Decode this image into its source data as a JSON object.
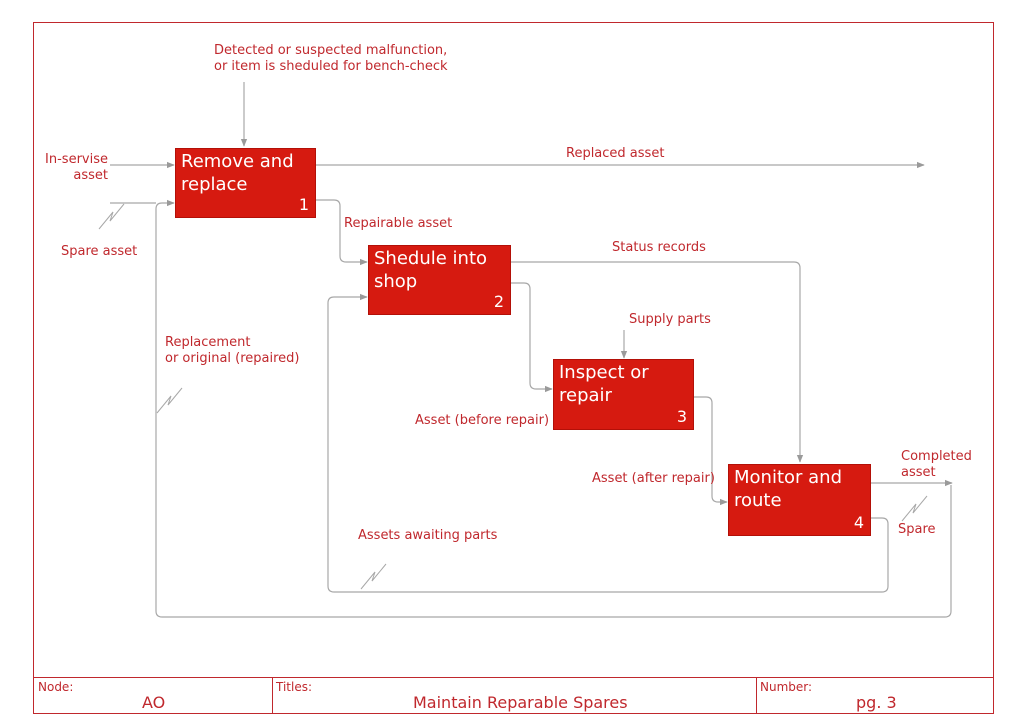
{
  "diagram": {
    "activities": [
      {
        "title_lines": [
          "Remove and",
          "replace"
        ],
        "number": "1"
      },
      {
        "title_lines": [
          "Shedule into",
          "shop"
        ],
        "number": "2"
      },
      {
        "title_lines": [
          "Inspect or",
          "repair"
        ],
        "number": "3"
      },
      {
        "title_lines": [
          "Monitor and",
          "route"
        ],
        "number": "4"
      }
    ],
    "flows": {
      "control_in": [
        "Detected or suspected malfunction,",
        "or item is sheduled for bench-check"
      ],
      "input_inservice": [
        "In-servise",
        "asset"
      ],
      "input_spare": "Spare asset",
      "replaced_asset": "Replaced asset",
      "repairable_asset": "Repairable asset",
      "status_records": "Status records",
      "supply_parts": "Supply parts",
      "replacement": [
        "Replacement",
        "or original (repaired)"
      ],
      "before_repair": "Asset (before repair)",
      "after_repair": "Asset (after repair)",
      "completed_asset": [
        "Completed",
        "asset"
      ],
      "spare": "Spare",
      "awaiting_parts": "Assets awaiting parts"
    }
  },
  "footer": {
    "node_label": "Node:",
    "node_value": "AO",
    "titles_label": "Titles:",
    "titles_value": "Maintain Reparable Spares",
    "number_label": "Number:",
    "number_value": "pg. 3"
  },
  "colors": {
    "border": "#c0282d",
    "box_fill": "#d61a10",
    "text": "#c0282d",
    "arrow": "#9a9a9a"
  }
}
